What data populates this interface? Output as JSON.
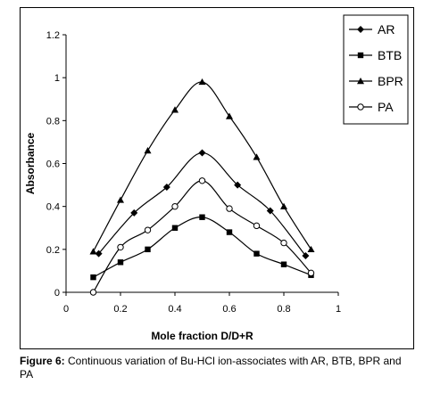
{
  "caption": {
    "label": "Figure 6:",
    "text": " Continuous variation of Bu-HCl ion-associates with AR, BTB, BPR and PA"
  },
  "chart_data": {
    "type": "line",
    "xlabel": "Mole fraction D/D+R",
    "ylabel": "Absorbance",
    "xlim": [
      0,
      1
    ],
    "ylim": [
      0,
      1.2
    ],
    "x_ticks": [
      "0",
      "0.2",
      "0.4",
      "0.6",
      "0.8",
      "1"
    ],
    "y_ticks": [
      "0",
      "0.2",
      "0.4",
      "0.6",
      "0.8",
      "1",
      "1.2"
    ],
    "grid": false,
    "legend_position": "top-right",
    "series": [
      {
        "name": "AR",
        "marker": "diamond",
        "color": "#000000",
        "x": [
          0.12,
          0.25,
          0.37,
          0.5,
          0.63,
          0.75,
          0.88
        ],
        "y": [
          0.18,
          0.37,
          0.49,
          0.65,
          0.5,
          0.38,
          0.17
        ]
      },
      {
        "name": "BTB",
        "marker": "square",
        "color": "#000000",
        "x": [
          0.1,
          0.2,
          0.3,
          0.4,
          0.5,
          0.6,
          0.7,
          0.8,
          0.9
        ],
        "y": [
          0.07,
          0.14,
          0.2,
          0.3,
          0.35,
          0.28,
          0.18,
          0.13,
          0.08
        ]
      },
      {
        "name": "BPR",
        "marker": "triangle",
        "color": "#000000",
        "x": [
          0.1,
          0.2,
          0.3,
          0.4,
          0.5,
          0.6,
          0.7,
          0.8,
          0.9
        ],
        "y": [
          0.19,
          0.43,
          0.66,
          0.85,
          0.98,
          0.82,
          0.63,
          0.4,
          0.2
        ]
      },
      {
        "name": "PA",
        "marker": "circle",
        "color": "#000000",
        "x": [
          0.1,
          0.2,
          0.3,
          0.4,
          0.5,
          0.6,
          0.7,
          0.8,
          0.9
        ],
        "y": [
          0.0,
          0.21,
          0.29,
          0.4,
          0.52,
          0.39,
          0.31,
          0.23,
          0.09
        ]
      }
    ]
  }
}
